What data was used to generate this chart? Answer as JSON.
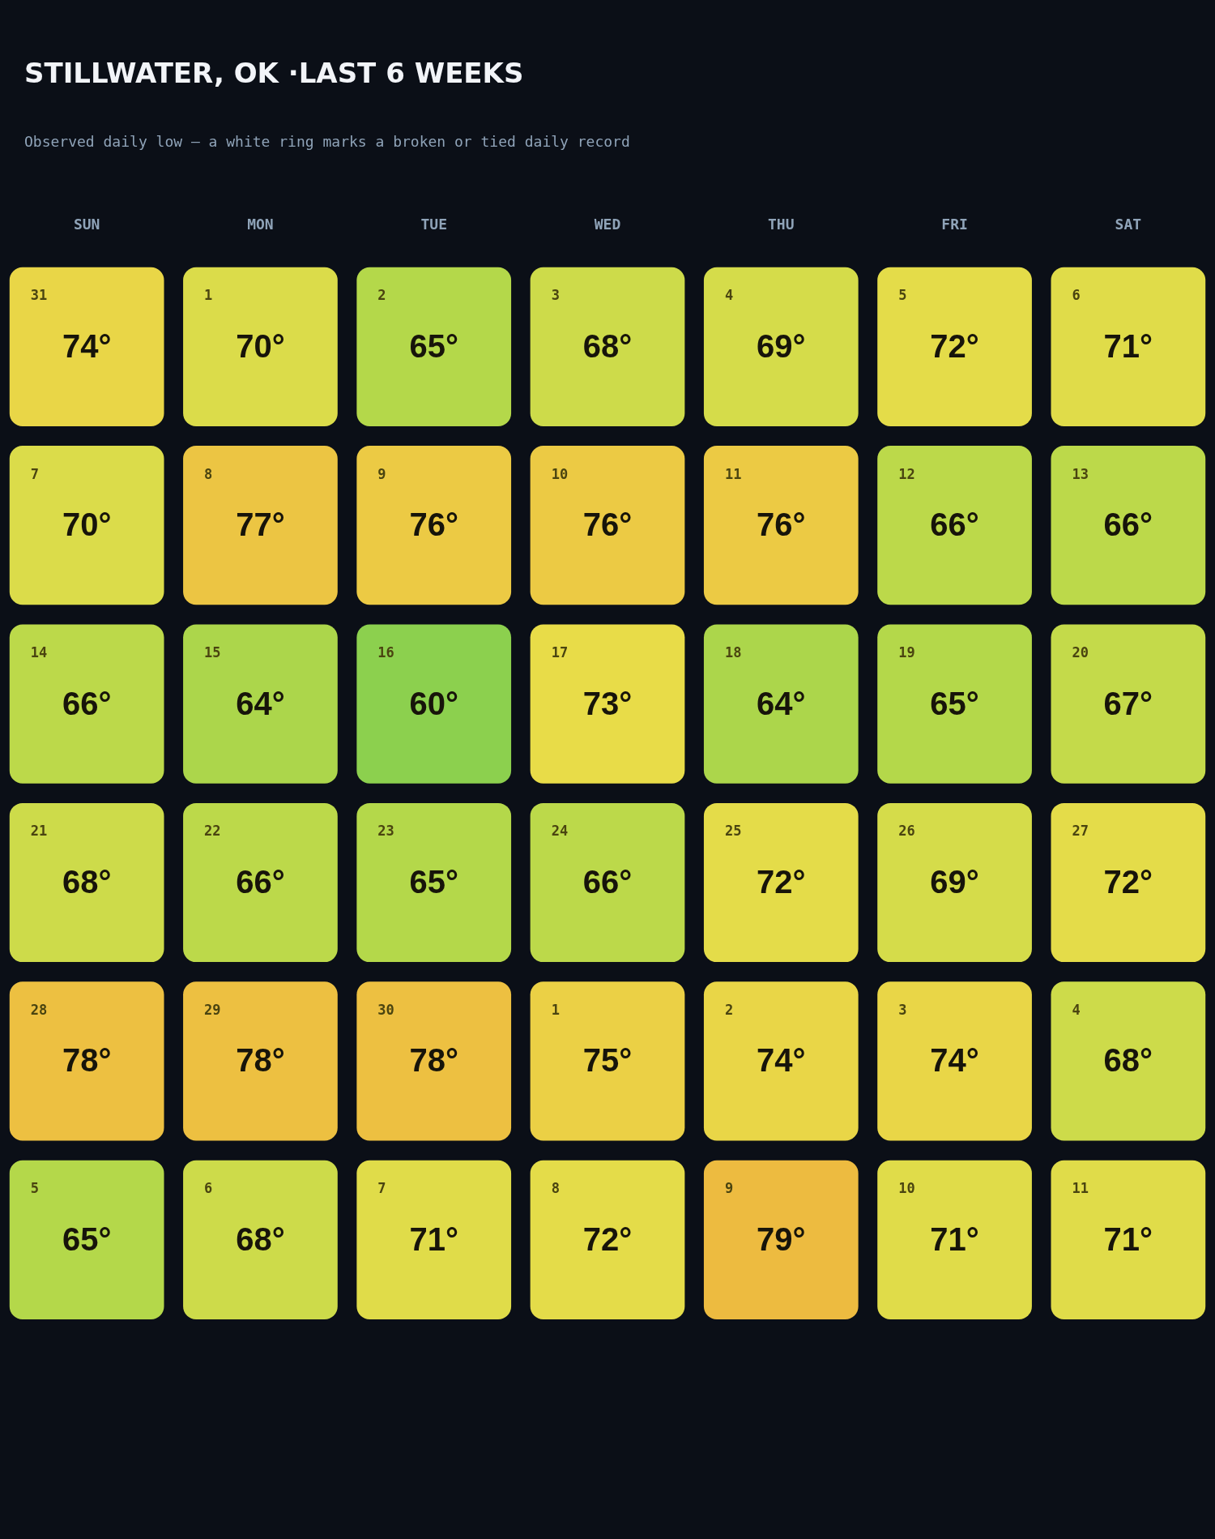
{
  "chart_data": {
    "type": "heatmap",
    "title": "STILLWATER, OK ·LAST 6 WEEKS",
    "subtitle": "Observed daily low — a white ring marks a broken or tied daily record",
    "categories": [
      "SUN",
      "MON",
      "TUE",
      "WED",
      "THU",
      "FRI",
      "SAT"
    ],
    "y_categories": [
      null,
      null,
      null,
      null,
      null,
      null
    ],
    "cells": [
      [
        74,
        70,
        65,
        68,
        69,
        72,
        71
      ],
      [
        70,
        77,
        76,
        76,
        76,
        66,
        66
      ],
      [
        66,
        64,
        60,
        73,
        64,
        65,
        67
      ],
      [
        68,
        66,
        65,
        66,
        72,
        69,
        72
      ],
      [
        78,
        78,
        78,
        75,
        74,
        74,
        68
      ],
      [
        65,
        68,
        71,
        72,
        79,
        71,
        71
      ]
    ],
    "cell_labels": [
      [
        "74°",
        "70°",
        "65°",
        "68°",
        "69°",
        "72°",
        "71°"
      ],
      [
        "70°",
        "77°",
        "76°",
        "76°",
        "76°",
        "66°",
        "66°"
      ],
      [
        "66°",
        "64°",
        "60°",
        "73°",
        "64°",
        "65°",
        "67°"
      ],
      [
        "68°",
        "66°",
        "65°",
        "66°",
        "72°",
        "69°",
        "72°"
      ],
      [
        "78°",
        "78°",
        "78°",
        "75°",
        "74°",
        "74°",
        "68°"
      ],
      [
        "65°",
        "68°",
        "71°",
        "72°",
        "79°",
        "71°",
        "71°"
      ]
    ],
    "annotations": [
      "31",
      "1",
      "2",
      "3",
      "4",
      "5",
      "6",
      "7",
      "8",
      "9",
      "10",
      "11",
      "12",
      "13",
      "14",
      "15",
      "16",
      "17",
      "18",
      "19",
      "20",
      "21",
      "22",
      "23",
      "24",
      "25",
      "26",
      "27",
      "28",
      "29",
      "30",
      "1",
      "2",
      "3",
      "4",
      "5",
      "6",
      "7",
      "8",
      "9",
      "10",
      "11"
    ]
  }
}
